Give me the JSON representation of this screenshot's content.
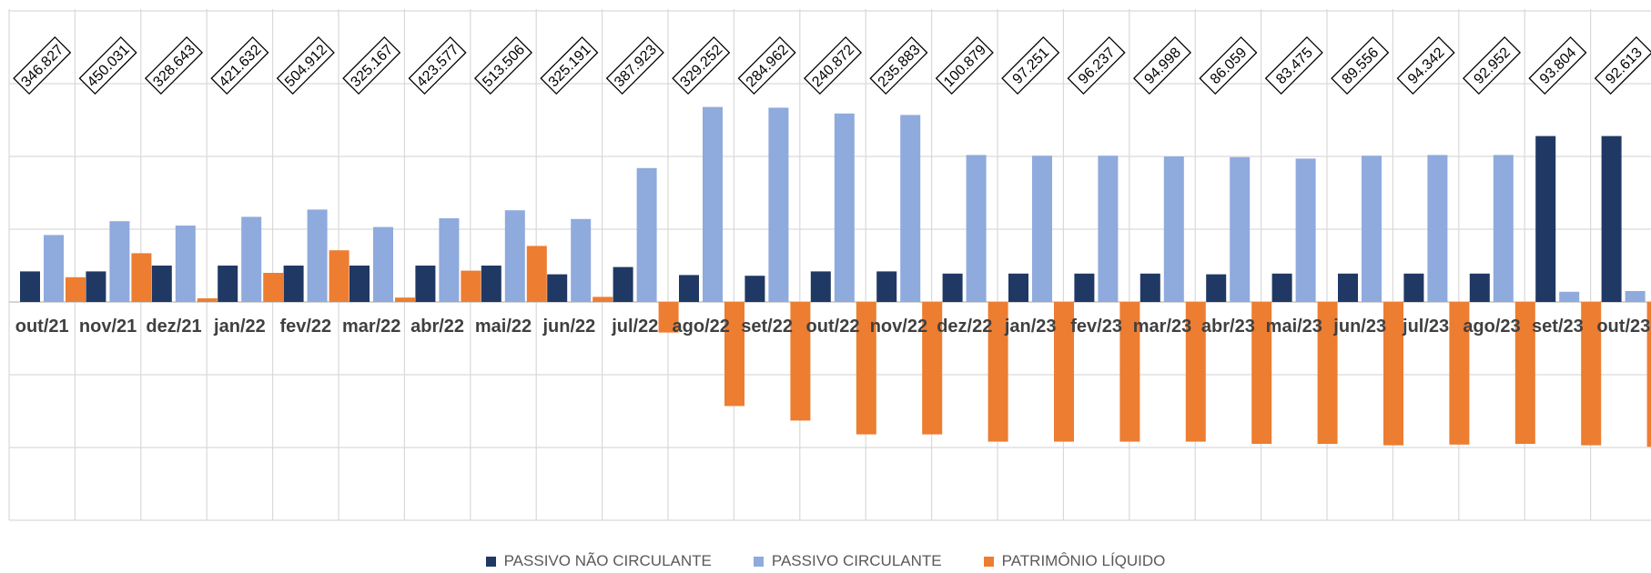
{
  "chart_data": {
    "type": "bar",
    "categories": [
      "out/21",
      "nov/21",
      "dez/21",
      "jan/22",
      "fev/22",
      "mar/22",
      "abr/22",
      "mai/22",
      "jun/22",
      "jul/22",
      "ago/22",
      "set/22",
      "out/22",
      "nov/22",
      "dez/22",
      "jan/23",
      "fev/23",
      "mar/23",
      "abr/23",
      "mai/23",
      "jun/23",
      "jul/23",
      "ago/23",
      "set/23",
      "out/23"
    ],
    "totals": [
      "346.827",
      "450.031",
      "328.643",
      "421.632",
      "504.912",
      "325.167",
      "423.577",
      "513.506",
      "325.191",
      "387.923",
      "329.252",
      "284.962",
      "240.872",
      "235.883",
      "100.879",
      "97.251",
      "96.237",
      "94.998",
      "86.059",
      "83.475",
      "89.556",
      "94.342",
      "92.952",
      "93.804",
      "92.613"
    ],
    "series": [
      {
        "name": "PASSIVO NÃO CIRCULANTE",
        "color": "#203864",
        "values": [
          42,
          42,
          50,
          50,
          50,
          50,
          50,
          50,
          38,
          48,
          37,
          36,
          42,
          42,
          39,
          39,
          39,
          39,
          38,
          39,
          39,
          39,
          39,
          228,
          228
        ]
      },
      {
        "name": "PASSIVO CIRCULANTE",
        "color": "#8faadc",
        "values": [
          92,
          111,
          105,
          117,
          127,
          103,
          115,
          126,
          114,
          184,
          268,
          267,
          259,
          257,
          202,
          201,
          201,
          200,
          199,
          197,
          201,
          202,
          202,
          14,
          15
        ]
      },
      {
        "name": "PATRIMÔNIO LÍQUIDO",
        "color": "#ed7d31",
        "values": [
          34,
          67,
          5,
          40,
          71,
          6,
          43,
          77,
          7,
          -42,
          -143,
          -163,
          -182,
          -182,
          -192,
          -192,
          -192,
          -192,
          -195,
          -195,
          -197,
          -196,
          -195,
          -197,
          -199
        ]
      }
    ],
    "ylim": [
      -300,
      400
    ],
    "grid": true,
    "legend": {
      "position": "bottom"
    }
  }
}
